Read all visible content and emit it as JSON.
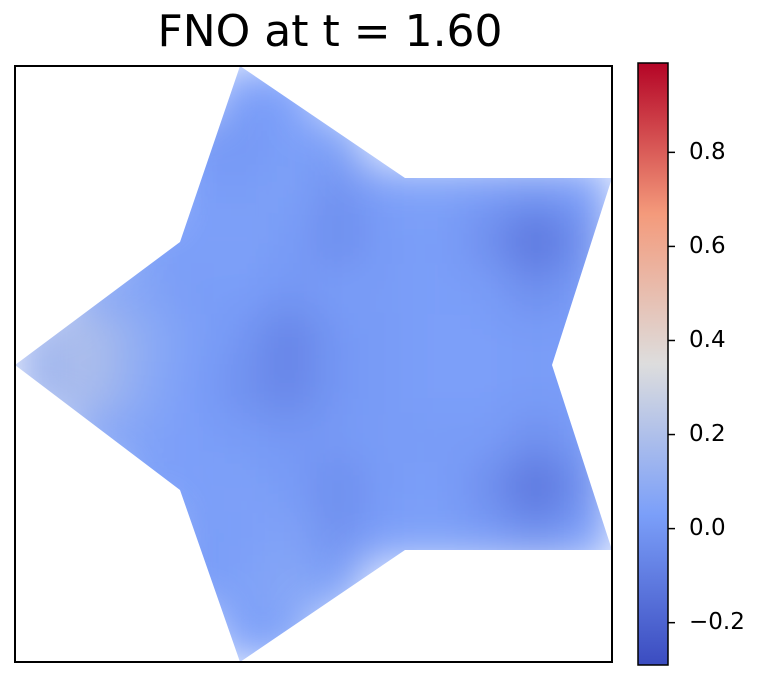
{
  "chart_data": {
    "type": "heatmap",
    "title": "FNO at t = 1.60",
    "colormap": "coolwarm",
    "clim": [
      -0.29,
      0.99
    ],
    "cbar_ticks": [
      {
        "value": -0.2,
        "label": "−0.2"
      },
      {
        "value": 0,
        "label": "0.0"
      },
      0.2,
      0.4,
      0.6,
      0.8
    ],
    "z": [
      [
        null,
        null,
        null,
        null,
        0.03,
        0.03,
        null,
        null,
        null,
        null,
        null,
        null
      ],
      [
        null,
        null,
        null,
        0.02,
        0.0,
        0.03,
        0.04,
        null,
        null,
        null,
        null,
        null
      ],
      [
        null,
        null,
        null,
        0.03,
        0.02,
        0.04,
        -0.02,
        0.03,
        0.04,
        0.02,
        0.0,
        0.03
      ],
      [
        null,
        null,
        0.05,
        0.03,
        0.04,
        0.02,
        -0.04,
        0.02,
        0.03,
        -0.03,
        -0.15,
        -0.02
      ],
      [
        null,
        0.08,
        0.06,
        0.02,
        0.03,
        0.0,
        0.02,
        0.02,
        0.03,
        0.02,
        -0.04,
        0.02
      ],
      [
        0.15,
        0.2,
        0.1,
        0.04,
        0.0,
        -0.08,
        0.0,
        0.02,
        0.03,
        0.03,
        0.02,
        0.03
      ],
      [
        0.14,
        0.19,
        0.09,
        0.03,
        -0.02,
        -0.07,
        0.0,
        0.02,
        0.03,
        0.03,
        0.02,
        0.03
      ],
      [
        null,
        0.07,
        0.05,
        0.03,
        0.02,
        0.0,
        0.01,
        0.02,
        0.02,
        0.02,
        -0.03,
        0.02
      ],
      [
        null,
        null,
        0.04,
        0.03,
        0.04,
        0.02,
        -0.04,
        0.02,
        0.03,
        -0.03,
        -0.15,
        -0.02
      ],
      [
        null,
        null,
        null,
        0.02,
        0.03,
        0.05,
        -0.02,
        0.03,
        0.04,
        0.02,
        -0.02,
        0.03
      ],
      [
        null,
        null,
        null,
        0.02,
        0.04,
        0.07,
        0.04,
        null,
        null,
        null,
        null,
        null
      ],
      [
        null,
        null,
        null,
        null,
        0.03,
        0.04,
        null,
        null,
        null,
        null,
        null,
        null
      ]
    ]
  }
}
